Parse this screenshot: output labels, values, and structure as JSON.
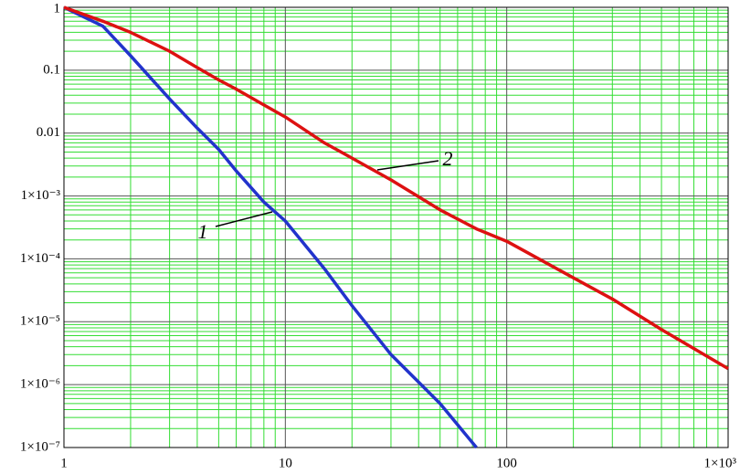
{
  "chart_data": {
    "type": "line",
    "x": [
      1,
      1.5,
      2,
      3,
      4,
      5,
      6,
      8,
      10,
      15,
      20,
      30,
      50,
      73,
      100,
      200,
      300,
      500,
      1000
    ],
    "series": [
      {
        "color": "#2233cc",
        "values": [
          1,
          0.5,
          0.17,
          0.035,
          0.012,
          0.0055,
          0.0025,
          0.0008,
          0.0004,
          7e-05,
          1.8e-05,
          3e-06,
          5e-07,
          1e-07,
          null,
          null,
          null,
          null,
          null
        ]
      },
      {
        "color": "#dd1111",
        "values": [
          1,
          0.6,
          0.4,
          0.2,
          0.11,
          0.07,
          0.05,
          0.028,
          0.018,
          0.007,
          0.004,
          0.0018,
          0.0006,
          0.0003,
          0.00019,
          5e-05,
          2.3e-05,
          7.5e-06,
          1.8e-06
        ]
      }
    ],
    "annotations": [
      "1",
      "2"
    ],
    "xlim": [
      1,
      1000
    ],
    "ylim": [
      1e-07,
      1
    ],
    "xticks": [
      1,
      10,
      100,
      {
        "value": 1000,
        "label": "1×10³"
      }
    ],
    "yticks": [
      1,
      0.1,
      0.01,
      {
        "value": 0.001,
        "label": "1×10⁻³"
      },
      {
        "value": 0.0001,
        "label": "1×10⁻⁴"
      },
      {
        "value": 1e-05,
        "label": "1×10⁻⁵"
      },
      {
        "value": 1e-06,
        "label": "1×10⁻⁶"
      },
      {
        "value": 1e-07,
        "label": "1×10⁻⁷"
      }
    ],
    "log_x": true,
    "log_y": true,
    "grid": true,
    "minor_grid": true,
    "grid_color": "#33dd33",
    "major_grid_color": "#555555"
  }
}
